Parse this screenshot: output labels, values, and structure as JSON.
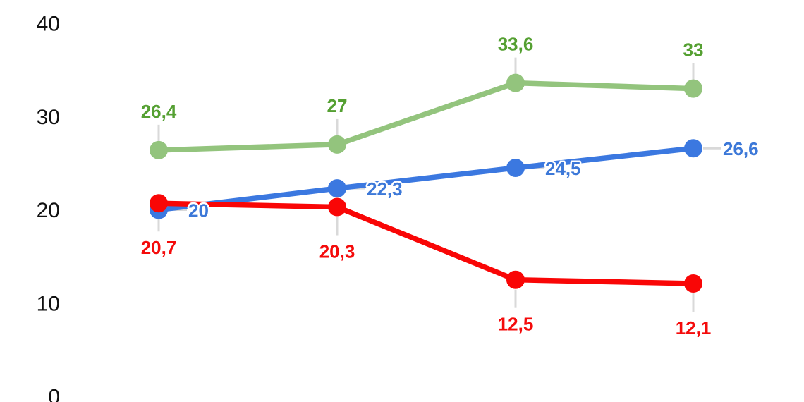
{
  "chart_data": {
    "type": "line",
    "title": "",
    "legend": "none",
    "grid": false,
    "background_color": "#ffffff",
    "axis_text_color": "#111111",
    "leader_line_color": "#d9d9d9",
    "x_axis": {
      "labels_visible": false,
      "num_points": 4
    },
    "y_axis": {
      "min": 0,
      "max": 40,
      "ticks": [
        40,
        30,
        20,
        10,
        0
      ],
      "tick_labels": [
        "40",
        "30",
        "20",
        "10",
        "0"
      ]
    },
    "series": [
      {
        "id": "green-series",
        "color": "#93c47d",
        "label_color": "#55a032",
        "values": [
          26.4,
          27,
          33.6,
          33
        ],
        "labels": [
          "26,4",
          "27",
          "33,6",
          "33"
        ],
        "label_position": "above"
      },
      {
        "id": "blue-series",
        "color": "#3b78e0",
        "label_color": "#3c78d8",
        "values": [
          20,
          22.3,
          24.5,
          26.6
        ],
        "labels": [
          "20",
          "22,3",
          "24,5",
          "26,6"
        ],
        "label_position": "right"
      },
      {
        "id": "red-series",
        "color": "#f90606",
        "label_color": "#f40b0b",
        "values": [
          20.7,
          20.3,
          12.5,
          12.1
        ],
        "labels": [
          "20,7",
          "20,3",
          "12,5",
          "12,1"
        ],
        "label_position": "below"
      }
    ]
  }
}
